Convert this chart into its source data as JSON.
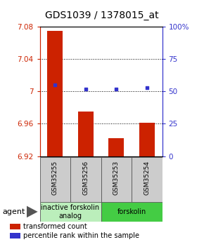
{
  "title": "GDS1039 / 1378015_at",
  "categories": [
    "GSM35255",
    "GSM35256",
    "GSM35253",
    "GSM35254"
  ],
  "bar_values": [
    7.075,
    6.975,
    6.942,
    6.961
  ],
  "bar_baseline": 6.92,
  "percentile_values": [
    55,
    52,
    52,
    53
  ],
  "ylim_left": [
    6.92,
    7.08
  ],
  "ylim_right": [
    0,
    100
  ],
  "yticks_left": [
    6.92,
    6.96,
    7.0,
    7.04,
    7.08
  ],
  "ytick_labels_left": [
    "6.92",
    "6.96",
    "7",
    "7.04",
    "7.08"
  ],
  "yticks_right": [
    0,
    25,
    50,
    75,
    100
  ],
  "ytick_labels_right": [
    "0",
    "25",
    "50",
    "75",
    "100%"
  ],
  "bar_color": "#cc2200",
  "percentile_color": "#3333cc",
  "agent_groups": [
    {
      "label": "inactive forskolin\nanalog",
      "span": [
        0,
        2
      ],
      "color": "#bbeebb"
    },
    {
      "label": "forskolin",
      "span": [
        2,
        4
      ],
      "color": "#44cc44"
    }
  ],
  "legend_items": [
    {
      "color": "#cc2200",
      "label": "transformed count"
    },
    {
      "color": "#3333cc",
      "label": "percentile rank within the sample"
    }
  ],
  "title_fontsize": 10,
  "tick_fontsize": 7.5,
  "cat_fontsize": 6.5,
  "legend_fontsize": 7,
  "agent_fontsize": 7,
  "bar_width": 0.5
}
